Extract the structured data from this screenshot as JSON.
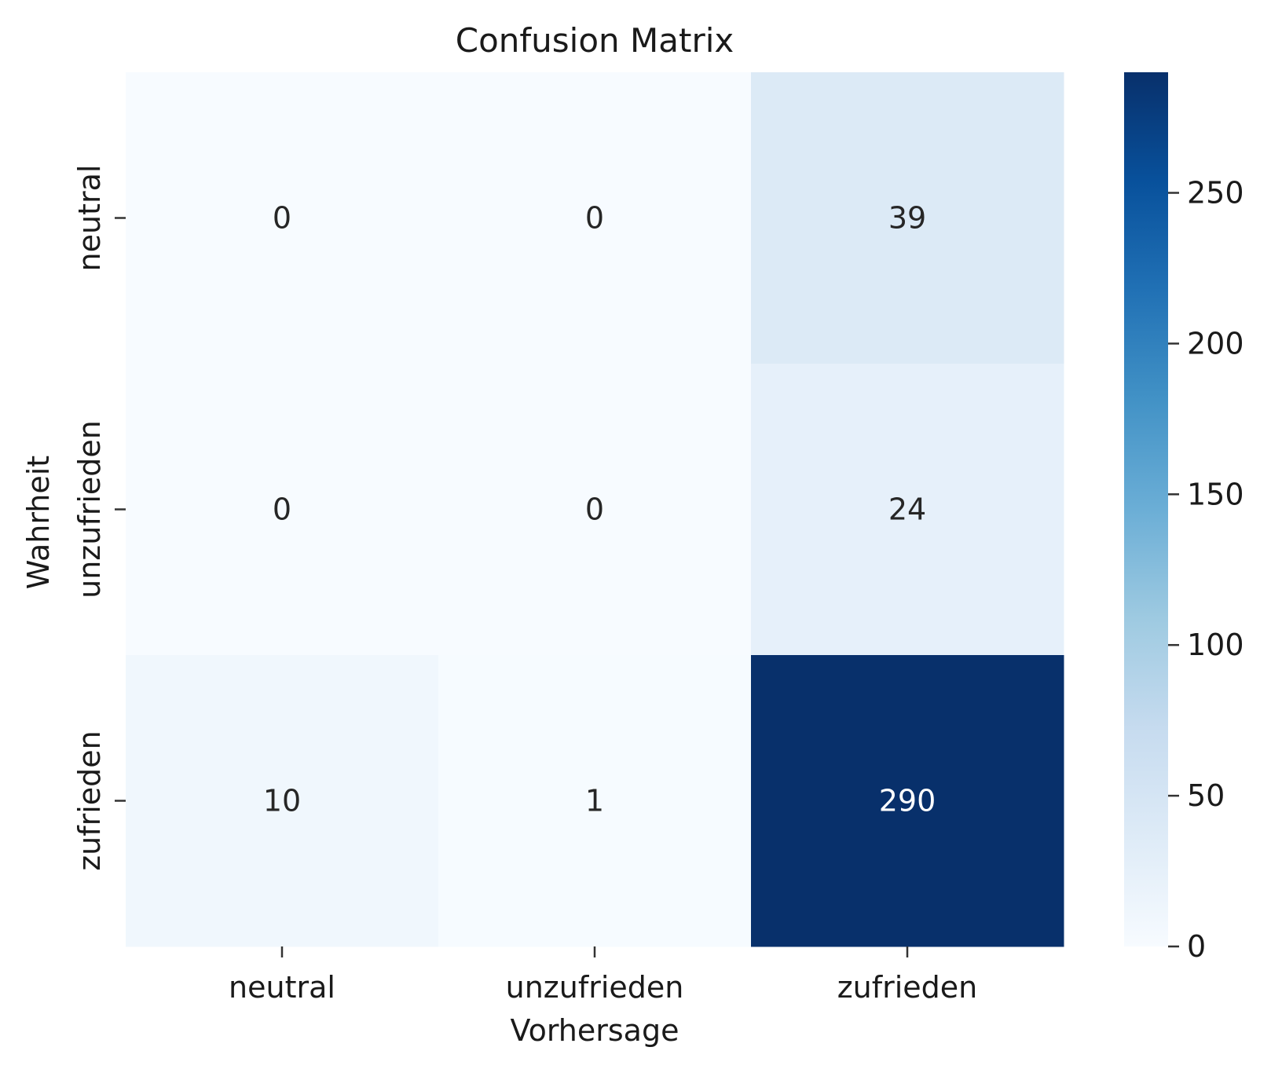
{
  "chart_data": {
    "type": "heatmap",
    "title": "Confusion Matrix",
    "xlabel": "Vorhersage",
    "ylabel": "Wahrheit",
    "x_categories": [
      "neutral",
      "unzufrieden",
      "zufrieden"
    ],
    "y_categories": [
      "neutral",
      "unzufrieden",
      "zufrieden"
    ],
    "values": [
      [
        0,
        0,
        39
      ],
      [
        0,
        0,
        24
      ],
      [
        10,
        1,
        290
      ]
    ],
    "colormap": "Blues",
    "colorbar": {
      "min": 0,
      "max": 290,
      "ticks": [
        0,
        50,
        100,
        150,
        200,
        250
      ]
    },
    "grid": false
  },
  "colors": {
    "text_dark": "#262626",
    "text_light": "#ffffff"
  }
}
